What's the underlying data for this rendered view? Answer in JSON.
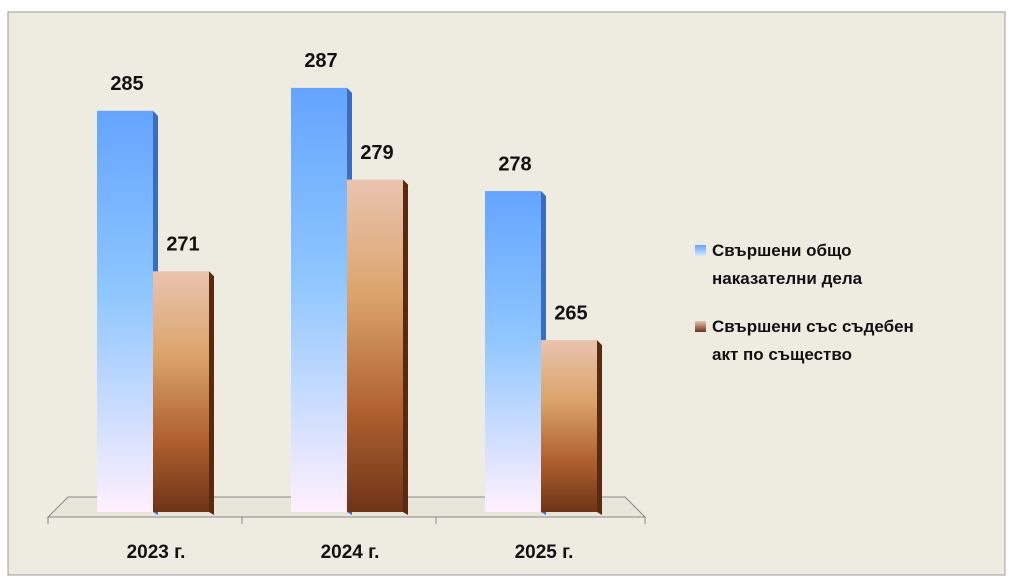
{
  "chart_data": {
    "type": "bar",
    "categories": [
      "2023 г.",
      "2024 г.",
      "2025 г."
    ],
    "series": [
      {
        "name": "Свършени общо наказателни дела",
        "color": "#6aa8ff",
        "values": [
          285,
          287,
          278
        ]
      },
      {
        "name": "Свършени със съдебен акт по същество",
        "color": "#c8703a",
        "values": [
          271,
          279,
          265
        ]
      }
    ],
    "ylim": [
      250,
      290
    ]
  }
}
